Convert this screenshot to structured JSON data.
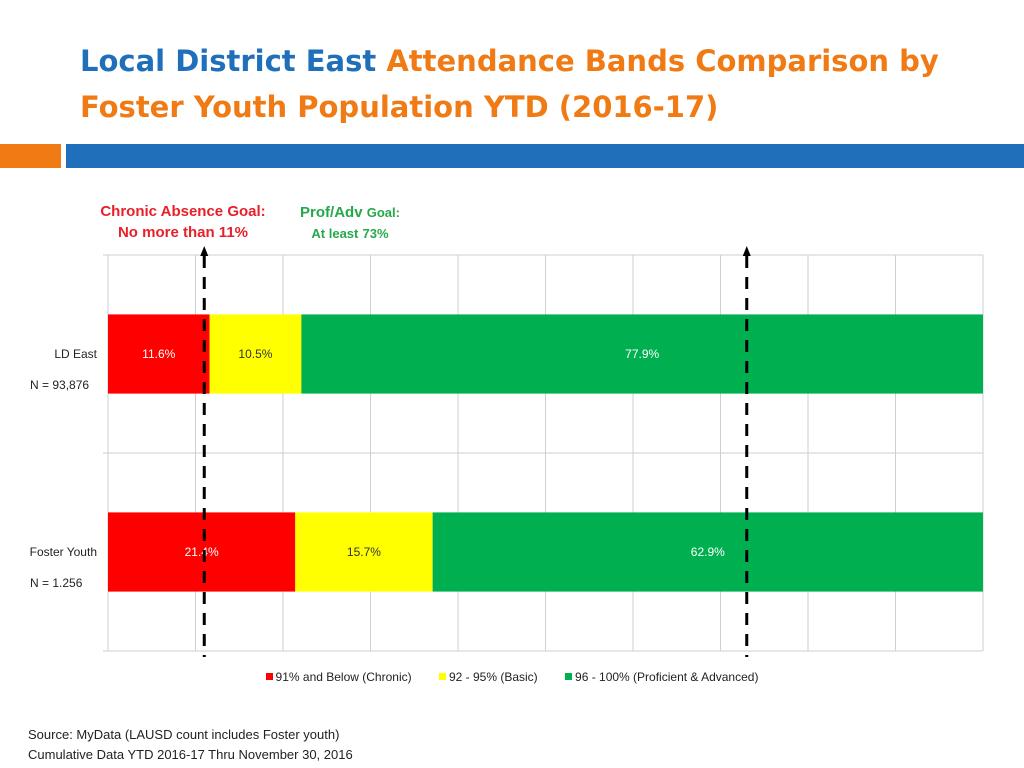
{
  "title": {
    "part1": "Local District East",
    "part2": "Attendance Bands Comparison by Foster Youth Population YTD (2016-17)"
  },
  "colors": {
    "title_blue": "#1f6fba",
    "title_orange": "#f07a14",
    "chronic": "#ff0000",
    "basic": "#ffff00",
    "proficient": "#00b050",
    "goal_red": "#e8202a",
    "goal_green": "#26a84a"
  },
  "goals": {
    "chronic": {
      "line1": "Chronic Absence Goal:",
      "line2": "No more than 11%",
      "value": 11
    },
    "prof": {
      "a": "Prof/Adv",
      "b": "Goal:",
      "c": "At least",
      "d": "73%",
      "value": 73
    }
  },
  "chart_data": {
    "type": "bar",
    "orientation": "horizontal",
    "stacked": true,
    "percent_stacked": true,
    "xlim": [
      0,
      100
    ],
    "grid": true,
    "legend_position": "bottom",
    "categories": [
      {
        "label": "LD East",
        "sublabel": "N = 93,876"
      },
      {
        "label": "Foster Youth",
        "sublabel": "N = 1.256"
      }
    ],
    "series": [
      {
        "name": "91% and Below (Chronic)",
        "color": "#ff0000",
        "values": [
          11.6,
          21.4
        ],
        "labels": [
          "11.6%",
          "21.4%"
        ],
        "label_color": "#ffffff"
      },
      {
        "name": "92 - 95% (Basic)",
        "color": "#ffff00",
        "values": [
          10.5,
          15.7
        ],
        "labels": [
          "10.5%",
          "15.7%"
        ],
        "label_color": "#333333"
      },
      {
        "name": "96 - 100% (Proficient & Advanced)",
        "color": "#00b050",
        "values": [
          77.9,
          62.9
        ],
        "labels": [
          "77.9%",
          "62.9%"
        ],
        "label_color": "#ffffff"
      }
    ],
    "reference_lines": [
      {
        "value": 11,
        "style": "dashed-arrow"
      },
      {
        "value": 73,
        "style": "dashed-arrow"
      }
    ]
  },
  "source": {
    "line1": "Source: MyData (LAUSD count includes Foster youth)",
    "line2": "Cumulative Data  YTD 2016-17 Thru November 30, 2016"
  }
}
